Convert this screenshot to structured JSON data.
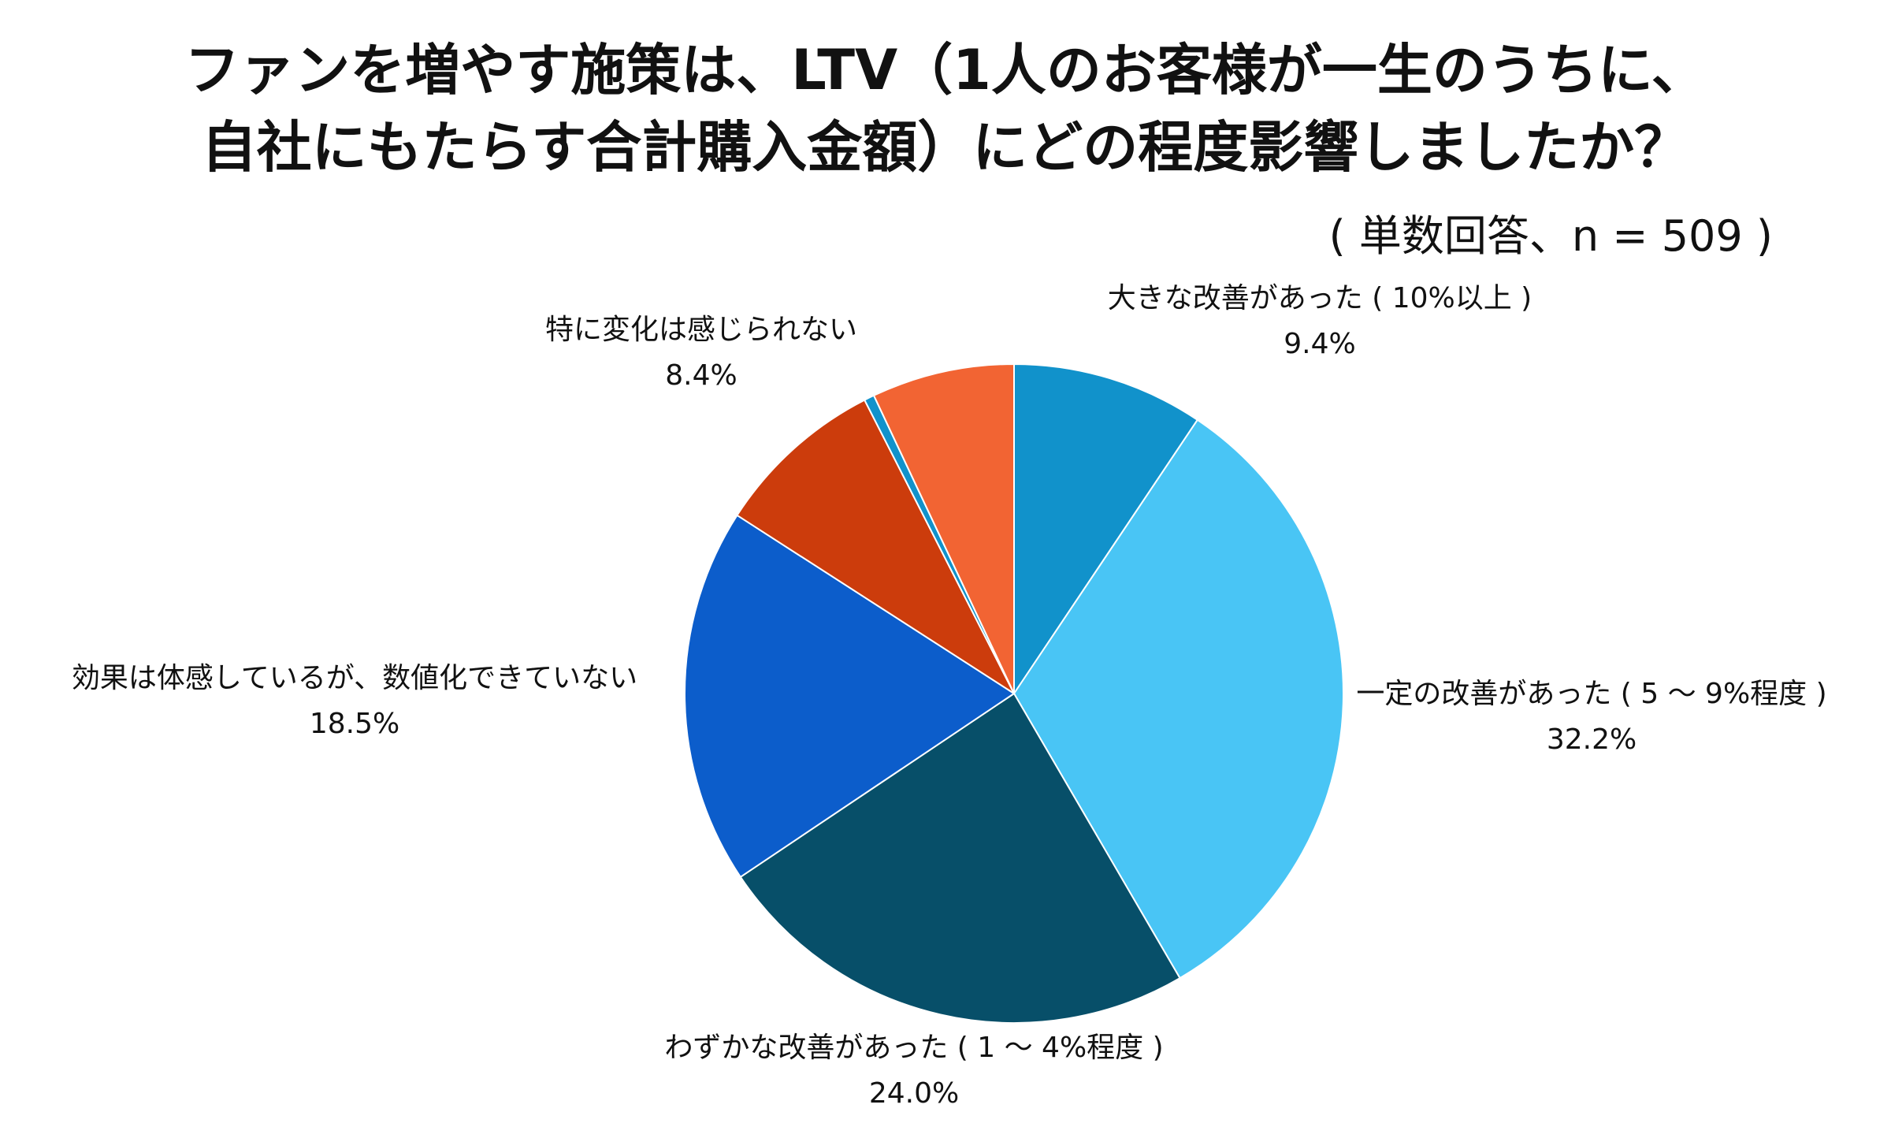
{
  "chart_data": {
    "type": "pie",
    "title_lines": [
      "ファンを増やす施策は、LTV（1人のお客様が一生のうちに、",
      "自社にもたらす合計購入金額）にどの程度影響しましたか？"
    ],
    "subtitle": "( 単数回答、n = 509 )",
    "start_angle": 0,
    "direction": "clockwise",
    "slices": [
      {
        "label": "大きな改善があった ( 10%以上 )",
        "value": 9.4,
        "value_label": "9.4%",
        "color": "#1192CB"
      },
      {
        "label": "一定の改善があった ( 5 ～ 9%程度 )",
        "value": 32.2,
        "value_label": "32.2%",
        "color": "#49C5F5"
      },
      {
        "label": "わずかな改善があった ( 1 ～ 4%程度 )",
        "value": 24.0,
        "value_label": "24.0%",
        "color": "#074F69"
      },
      {
        "label": "効果は体感しているが、数値化できていない",
        "value": 18.5,
        "value_label": "18.5%",
        "color": "#0C5DCB"
      },
      {
        "label": "特に変化は感じられない",
        "value": 8.4,
        "value_label": "8.4%",
        "color": "#CC3C0C"
      },
      {
        "label": "",
        "value": 0.5,
        "value_label": "",
        "color": "#1192CB"
      },
      {
        "label": "",
        "value": 7.0,
        "value_label": "",
        "color": "#F26433"
      }
    ]
  }
}
